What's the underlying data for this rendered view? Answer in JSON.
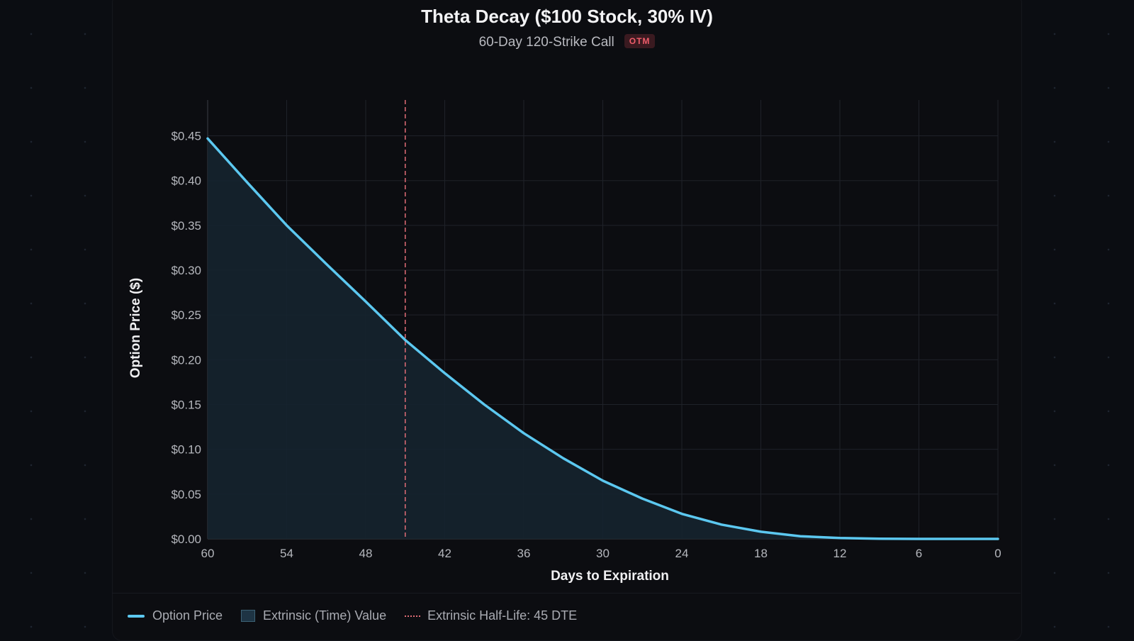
{
  "chart_data": {
    "type": "area",
    "title": "Theta Decay ($100 Stock, 30% IV)",
    "subtitle": "60-Day 120-Strike Call",
    "badge": "OTM",
    "xlabel": "Days to Expiration",
    "ylabel": "Option Price ($)",
    "xlim": [
      60,
      0
    ],
    "ylim": [
      0,
      0.49
    ],
    "x_reversed": true,
    "grid": true,
    "x_ticks": [
      "60",
      "54",
      "48",
      "42",
      "36",
      "30",
      "24",
      "18",
      "12",
      "6",
      "0"
    ],
    "y_ticks": [
      "$0.00",
      "$0.05",
      "$0.10",
      "$0.15",
      "$0.20",
      "$0.25",
      "$0.30",
      "$0.35",
      "$0.40",
      "$0.45"
    ],
    "series": [
      {
        "name": "Option Price",
        "x": [
          60,
          57,
          54,
          51,
          48,
          45,
          42,
          39,
          36,
          33,
          30,
          27,
          24,
          21,
          18,
          15,
          12,
          9,
          6,
          3,
          0
        ],
        "y": [
          0.447,
          0.398,
          0.35,
          0.307,
          0.265,
          0.222,
          0.185,
          0.15,
          0.118,
          0.09,
          0.065,
          0.045,
          0.028,
          0.016,
          0.008,
          0.003,
          0.001,
          0.0002,
          0,
          0,
          0
        ]
      }
    ],
    "area_name": "Extrinsic (Time) Value",
    "vline": {
      "x": 45,
      "label": "Extrinsic Half-Life: 45 DTE"
    },
    "legend_position": "bottom-left",
    "colors": {
      "line": "#5cc8f0",
      "area": "#15232f",
      "vline": "#e06c75",
      "grid": "#1f2229"
    }
  }
}
